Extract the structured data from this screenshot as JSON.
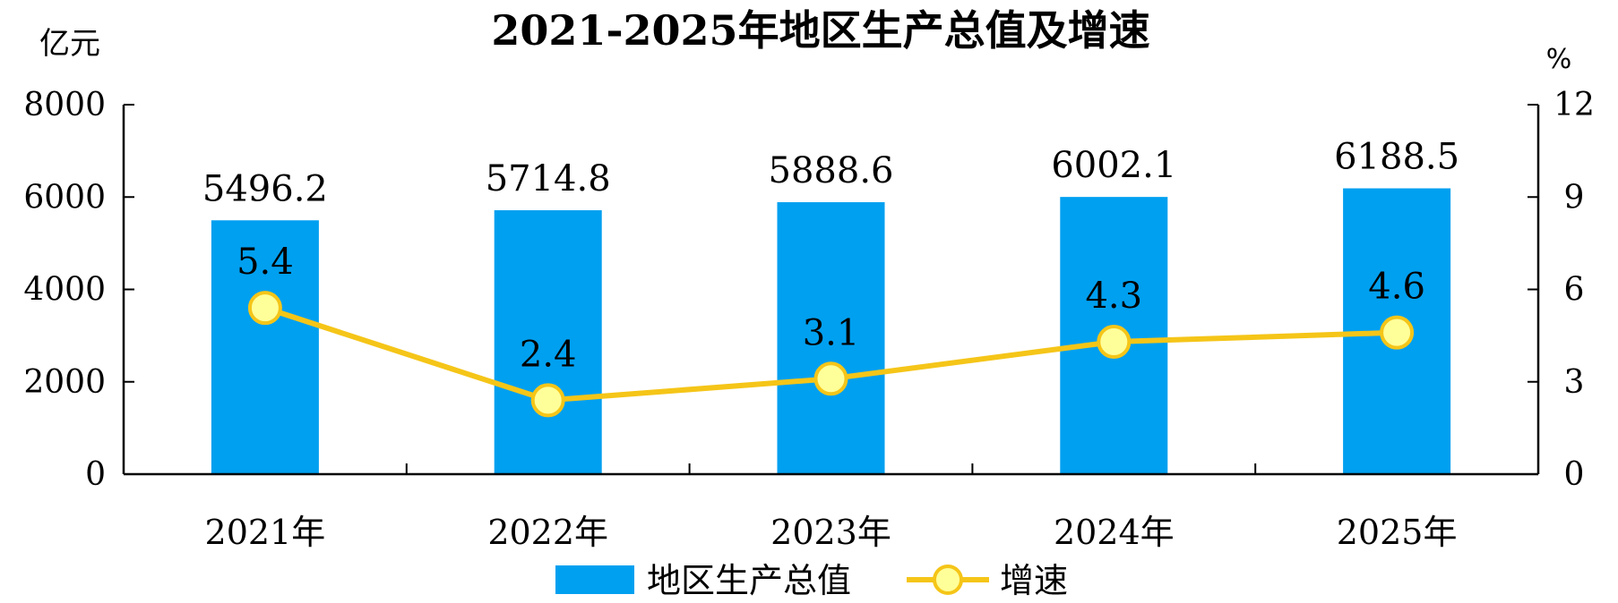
{
  "chart_data": {
    "type": "bar",
    "title": "2021-2025年地区生产总值及增速",
    "categories": [
      "2021年",
      "2022年",
      "2023年",
      "2024年",
      "2025年"
    ],
    "series": [
      {
        "name": "地区生产总值",
        "type": "bar",
        "axis": "left",
        "color": "#00A0F0",
        "values": [
          5496.2,
          5714.8,
          5888.6,
          6002.1,
          6188.5
        ]
      },
      {
        "name": "增速",
        "type": "line",
        "axis": "right",
        "color": "#F5C518",
        "marker_fill": "#FFFF99",
        "values": [
          5.4,
          2.4,
          3.1,
          4.3,
          4.6
        ]
      }
    ],
    "left_axis": {
      "unit": "亿元",
      "ylim": [
        0,
        8000
      ],
      "ticks": [
        0,
        2000,
        4000,
        6000,
        8000
      ]
    },
    "right_axis": {
      "unit": "%",
      "ylim": [
        0,
        12
      ],
      "ticks": [
        0,
        3,
        6,
        9,
        12
      ]
    },
    "bar_value_labels": [
      "5496.2",
      "5714.8",
      "5888.6",
      "6002.1",
      "6188.5"
    ],
    "line_value_labels": [
      "5.4",
      "2.4",
      "3.1",
      "4.3",
      "4.6"
    ],
    "legend_position": "bottom",
    "grid": false
  }
}
